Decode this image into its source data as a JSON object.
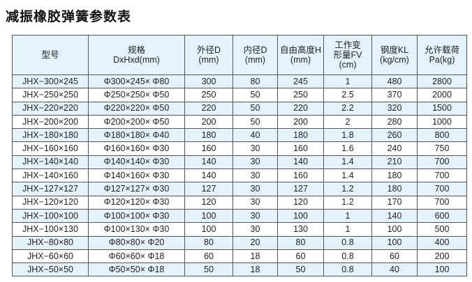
{
  "title": "减振橡胶弹簧参数表",
  "colors": {
    "header_bg": "#e3f2fb",
    "alt_row_bg": "#e3f2fb"
  },
  "headers": [
    [
      "型号"
    ],
    [
      "规格",
      "DxHxd(mm)"
    ],
    [
      "外径D",
      "(mm)"
    ],
    [
      "内径D",
      "(mm)"
    ],
    [
      "自由高度H",
      "(mm)"
    ],
    [
      "工作变",
      "形量FV",
      "(cm)"
    ],
    [
      "钢度KL",
      "(kg/cm)"
    ],
    [
      "允许载荷",
      "Pa(kg)"
    ]
  ],
  "rows": [
    [
      "JHX−300×245",
      "Φ300×245× Φ80",
      "300",
      "80",
      "245",
      "1",
      "480",
      "2800"
    ],
    [
      "JHX−250×250",
      "Φ250×250× Φ50",
      "250",
      "50",
      "250",
      "2.5",
      "370",
      "2000"
    ],
    [
      "JHX−220×220",
      "Φ220×220× Φ50",
      "220",
      "50",
      "220",
      "2.2",
      "320",
      "1500"
    ],
    [
      "JHX−200×200",
      "Φ200×200× Φ50",
      "200",
      "50",
      "200",
      "2",
      "280",
      "1000"
    ],
    [
      "JHX−180×180",
      "Φ180×180× Φ40",
      "180",
      "40",
      "180",
      "1.8",
      "260",
      "800"
    ],
    [
      "JHX−160×160",
      "Φ160×160× Φ30",
      "160",
      "30",
      "160",
      "1.6",
      "240",
      "750"
    ],
    [
      "JHX−140×140",
      "Φ140×140× Φ30",
      "140",
      "30",
      "140",
      "1.4",
      "210",
      "700"
    ],
    [
      "JHX−140×160",
      "Φ140×160× Φ30",
      "140",
      "30",
      "160",
      "1.4",
      "180",
      "700"
    ],
    [
      "JHX−127×127",
      "Φ127×127× Φ30",
      "127",
      "30",
      "127",
      "1.2",
      "180",
      "700"
    ],
    [
      "JHX−120×120",
      "Φ120×120× Φ30",
      "120",
      "30",
      "120",
      "1.2",
      "170",
      "700"
    ],
    [
      "JHX−100×100",
      "Φ100×100× Φ30",
      "100",
      "30",
      "100",
      "1",
      "140",
      "600"
    ],
    [
      "JHX−100×130",
      "Φ100×130× Φ30",
      "100",
      "30",
      "130",
      "1",
      "100",
      "500"
    ],
    [
      "JHX−80×80",
      "Φ80×80× Φ20",
      "80",
      "20",
      "80",
      "0.8",
      "100",
      "400"
    ],
    [
      "JHX−60×60",
      "Φ60×60× Φ18",
      "60",
      "18",
      "60",
      "0.8",
      "60",
      "200"
    ],
    [
      "JHX−50×50",
      "Φ50×50× Φ18",
      "50",
      "18",
      "50",
      "0.8",
      "40",
      "100"
    ]
  ]
}
